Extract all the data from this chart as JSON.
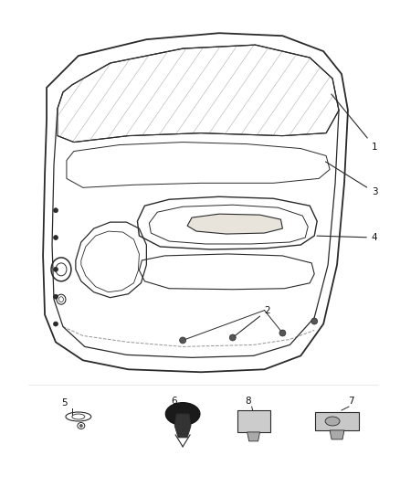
{
  "background_color": "#ffffff",
  "fig_width": 4.38,
  "fig_height": 5.33,
  "dpi": 100,
  "line_color": "#2a2a2a",
  "label_fontsize": 7.5,
  "label_color": "#111111"
}
